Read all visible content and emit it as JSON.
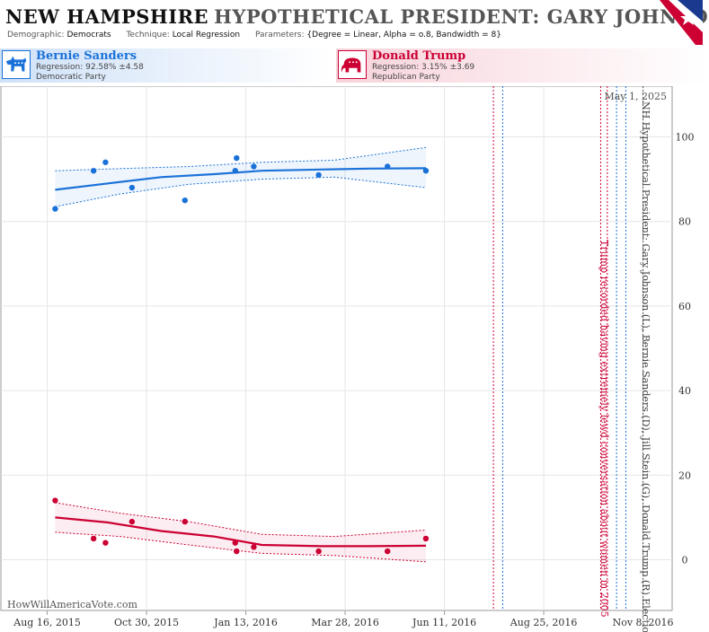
{
  "header": {
    "state": "NEW HAMPSHIRE",
    "subtitle": "HYPOTHETICAL PRESIDENT:  GARY JOHNSON",
    "demographic_label": "Demographic:",
    "demographic_value": "Democrats",
    "technique_label": "Technique:",
    "technique_value": "Local Regression",
    "parameters_label": "Parameters:",
    "parameters_value": "{Degree = Linear, Alpha = o.8, Bandwidth = 8}"
  },
  "candidates": {
    "dem": {
      "name": "Bernie Sanders",
      "regression": "Regression: 92.58% ±4.58",
      "party": "Democratic Party",
      "color": "#1a72d9"
    },
    "rep": {
      "name": "Donald Trump",
      "regression": "Regression: 3.15% ±3.69",
      "party": "Republican Party",
      "color": "#cc0033"
    }
  },
  "watermark": "HowWillAmericaVote.com",
  "annotations": {
    "date_label": "May 1, 2025",
    "election_label": "NH Hypothetical President: Gary Johnson (L), Bernie Sanders (D), Jill Stein (G), Donald Trump (R) Election",
    "event_label": "Trump recorded having extremely lewd conversation about women in 2005"
  },
  "chart_data": {
    "type": "scatter",
    "x_ticks": [
      "Aug 16, 2015",
      "Oct 30, 2015",
      "Jan 13, 2016",
      "Mar 28, 2016",
      "Jun 11, 2016",
      "Aug 25, 2016",
      "Nov 8, 2016"
    ],
    "y_ticks": [
      0,
      20,
      40,
      60,
      80,
      100
    ],
    "ylim": [
      -12,
      112
    ],
    "xlim": [
      "2015-07-12",
      "2016-11-30"
    ],
    "series": [
      {
        "name": "Bernie Sanders",
        "color": "#1a72d9",
        "points": [
          {
            "x": "2015-08-22",
            "y": 83
          },
          {
            "x": "2015-09-20",
            "y": 92
          },
          {
            "x": "2015-09-29",
            "y": 94
          },
          {
            "x": "2015-10-19",
            "y": 88
          },
          {
            "x": "2015-11-28",
            "y": 85
          },
          {
            "x": "2016-01-05",
            "y": 92
          },
          {
            "x": "2016-01-06",
            "y": 95
          },
          {
            "x": "2016-01-19",
            "y": 93
          },
          {
            "x": "2016-03-08",
            "y": 91
          },
          {
            "x": "2016-04-29",
            "y": 93
          },
          {
            "x": "2016-05-28",
            "y": 92
          }
        ],
        "trend": [
          {
            "x": "2015-08-22",
            "y": 87.5
          },
          {
            "x": "2015-10-01",
            "y": 89
          },
          {
            "x": "2015-11-10",
            "y": 90.5
          },
          {
            "x": "2015-12-20",
            "y": 91.2
          },
          {
            "x": "2016-01-25",
            "y": 92
          },
          {
            "x": "2016-03-10",
            "y": 92.3
          },
          {
            "x": "2016-04-15",
            "y": 92.5
          },
          {
            "x": "2016-05-28",
            "y": 92.6
          }
        ],
        "upper": [
          {
            "x": "2015-08-22",
            "y": 92
          },
          {
            "x": "2015-10-10",
            "y": 92.5
          },
          {
            "x": "2015-12-01",
            "y": 93
          },
          {
            "x": "2016-01-25",
            "y": 94
          },
          {
            "x": "2016-03-20",
            "y": 94.5
          },
          {
            "x": "2016-05-28",
            "y": 97.5
          }
        ],
        "lower": [
          {
            "x": "2015-08-22",
            "y": 83.5
          },
          {
            "x": "2015-10-10",
            "y": 86.5
          },
          {
            "x": "2015-12-01",
            "y": 88.8
          },
          {
            "x": "2016-01-25",
            "y": 90
          },
          {
            "x": "2016-03-20",
            "y": 90.5
          },
          {
            "x": "2016-05-28",
            "y": 88
          }
        ]
      },
      {
        "name": "Donald Trump",
        "color": "#cc0033",
        "points": [
          {
            "x": "2015-08-22",
            "y": 14
          },
          {
            "x": "2015-09-20",
            "y": 5
          },
          {
            "x": "2015-09-29",
            "y": 4
          },
          {
            "x": "2015-10-19",
            "y": 9
          },
          {
            "x": "2015-11-28",
            "y": 9
          },
          {
            "x": "2016-01-05",
            "y": 4
          },
          {
            "x": "2016-01-06",
            "y": 2
          },
          {
            "x": "2016-01-19",
            "y": 3
          },
          {
            "x": "2016-03-08",
            "y": 2
          },
          {
            "x": "2016-04-29",
            "y": 2
          },
          {
            "x": "2016-05-28",
            "y": 5
          }
        ],
        "trend": [
          {
            "x": "2015-08-22",
            "y": 10
          },
          {
            "x": "2015-10-01",
            "y": 8.8
          },
          {
            "x": "2015-11-10",
            "y": 6.8
          },
          {
            "x": "2015-12-20",
            "y": 5.5
          },
          {
            "x": "2016-01-25",
            "y": 3.5
          },
          {
            "x": "2016-03-10",
            "y": 3.2
          },
          {
            "x": "2016-04-15",
            "y": 3.2
          },
          {
            "x": "2016-05-28",
            "y": 3.3
          }
        ],
        "upper": [
          {
            "x": "2015-08-22",
            "y": 13.5
          },
          {
            "x": "2015-10-10",
            "y": 11
          },
          {
            "x": "2015-12-01",
            "y": 9
          },
          {
            "x": "2016-01-25",
            "y": 6
          },
          {
            "x": "2016-03-20",
            "y": 5.5
          },
          {
            "x": "2016-05-28",
            "y": 7
          }
        ],
        "lower": [
          {
            "x": "2015-08-22",
            "y": 6.5
          },
          {
            "x": "2015-10-10",
            "y": 5.5
          },
          {
            "x": "2015-12-01",
            "y": 3.5
          },
          {
            "x": "2016-01-25",
            "y": 1.5
          },
          {
            "x": "2016-03-20",
            "y": 1
          },
          {
            "x": "2016-05-28",
            "y": -0.5
          }
        ]
      }
    ],
    "vlines": [
      {
        "x": "2016-07-18",
        "color": "#cc0033"
      },
      {
        "x": "2016-07-25",
        "color": "#1a72d9"
      },
      {
        "x": "2016-10-07",
        "color": "#cc0033"
      },
      {
        "x": "2016-10-12",
        "color": "#cc0033"
      },
      {
        "x": "2016-10-19",
        "color": "#1a72d9"
      },
      {
        "x": "2016-10-26",
        "color": "#1a72d9"
      },
      {
        "x": "2016-11-08",
        "color": "#555555"
      }
    ],
    "grid": true
  }
}
